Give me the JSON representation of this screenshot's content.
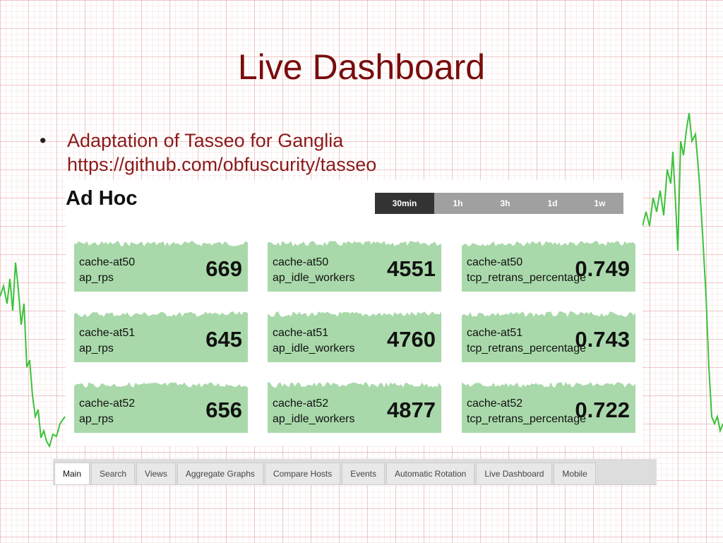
{
  "slide": {
    "title": "Live Dashboard",
    "bullet": "Adaptation of Tasseo for Ganglia",
    "url": "https://github.com/obfuscurity/tasseo"
  },
  "dashboard": {
    "title": "Ad Hoc",
    "ranges": [
      "30min",
      "1h",
      "3h",
      "1d",
      "1w"
    ],
    "tiles": [
      {
        "host": "cache-at50",
        "metric": "ap_rps",
        "value": 669
      },
      {
        "host": "cache-at50",
        "metric": "ap_idle_workers",
        "value": 4551
      },
      {
        "host": "cache-at50",
        "metric": "tcp_retrans_percentage",
        "value": 0.749
      },
      {
        "host": "cache-at51",
        "metric": "ap_rps",
        "value": 645
      },
      {
        "host": "cache-at51",
        "metric": "ap_idle_workers",
        "value": 4760
      },
      {
        "host": "cache-at51",
        "metric": "tcp_retrans_percentage",
        "value": 0.743
      },
      {
        "host": "cache-at52",
        "metric": "ap_rps",
        "value": 656
      },
      {
        "host": "cache-at52",
        "metric": "ap_idle_workers",
        "value": 4877
      },
      {
        "host": "cache-at52",
        "metric": "tcp_retrans_percentage",
        "value": 0.722
      }
    ]
  },
  "tabs": [
    "Main",
    "Search",
    "Views",
    "Aggregate Graphs",
    "Compare Hosts",
    "Events",
    "Automatic Rotation",
    "Live Dashboard",
    "Mobile"
  ]
}
